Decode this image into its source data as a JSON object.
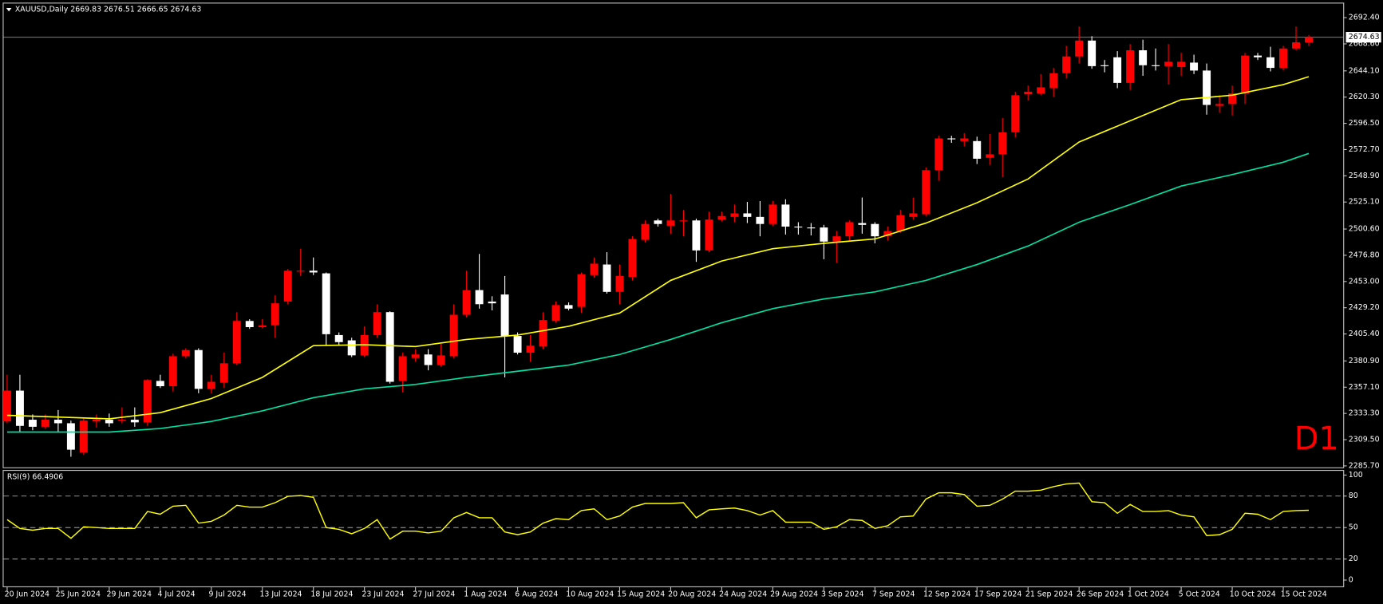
{
  "chart_data": {
    "type": "candlestick",
    "title": "XAUUSD,Daily 2669.83 2676.51 2666.65 2674.63",
    "watermark": "D1",
    "bull_color": "#ff0000",
    "bear_color": "#ffffff",
    "categories": [
      "20 Jun 2024",
      null,
      null,
      null,
      "25 Jun 2024",
      null,
      null,
      null,
      "29 Jun 2024",
      null,
      null,
      null,
      "4 Jul 2024",
      null,
      null,
      null,
      "9 Jul 2024",
      null,
      null,
      null,
      "13 Jul 2024",
      null,
      null,
      null,
      "18 Jul 2024",
      null,
      null,
      null,
      "23 Jul 2024",
      null,
      null,
      null,
      "27 Jul 2024",
      null,
      null,
      null,
      "1 Aug 2024",
      null,
      null,
      null,
      "6 Aug 2024",
      null,
      null,
      null,
      "10 Aug 2024",
      null,
      null,
      null,
      "15 Aug 2024",
      null,
      null,
      null,
      "20 Aug 2024",
      null,
      null,
      null,
      "24 Aug 2024",
      null,
      null,
      null,
      "29 Aug 2024",
      null,
      null,
      null,
      "3 Sep 2024",
      null,
      null,
      null,
      "7 Sep 2024",
      null,
      null,
      null,
      "12 Sep 2024",
      null,
      null,
      null,
      "17 Sep 2024",
      null,
      null,
      null,
      "21 Sep 2024",
      null,
      null,
      null,
      "26 Sep 2024",
      null,
      null,
      null,
      "1 Oct 2024",
      null,
      null,
      null,
      "5 Oct 2024",
      null,
      null,
      null,
      "10 Oct 2024",
      null,
      null,
      null,
      "15 Oct 2024",
      null,
      null
    ],
    "open": [
      2326.0,
      2354.0,
      2327.6,
      2321.2,
      2327.6,
      2324.4,
      2298.0,
      2326.0,
      2327.6,
      2326.8,
      2327.6,
      2325.2,
      2362.8,
      2358.0,
      2385.2,
      2390.8,
      2355.6,
      2361.2,
      2378.8,
      2417.2,
      2411.6,
      2413.2,
      2434.8,
      2462.0,
      2462.8,
      2460.4,
      2404.4,
      2399.6,
      2386.0,
      2404.4,
      2425.2,
      2362.8,
      2383.6,
      2386.8,
      2377.2,
      2385.2,
      2422.8,
      2445.2,
      2434.8,
      2441.2,
      2403.6,
      2388.4,
      2394.0,
      2417.2,
      2431.6,
      2430.0,
      2458.8,
      2468.4,
      2443.6,
      2457.2,
      2490.8,
      2508.4,
      2503.6,
      2507.6,
      2508.4,
      2481.2,
      2509.2,
      2511.6,
      2514.8,
      2511.6,
      2505.2,
      2522.8,
      2502.8,
      2502.0,
      2502.0,
      2489.2,
      2494.0,
      2506.0,
      2505.2,
      2494.0,
      2498.8,
      2511.6,
      2514.0,
      2554.0,
      2582.8,
      2580.4,
      2580.4,
      2565.2,
      2568.4,
      2588.4,
      2622.8,
      2623.6,
      2628.4,
      2642.0,
      2657.2,
      2671.6,
      2649.2,
      2656.4,
      2633.2,
      2662.8,
      2649.2,
      2648.4,
      2647.6,
      2651.6,
      2644.4,
      2612.4,
      2614.0,
      2623.6,
      2658.0,
      2656.4,
      2646.8,
      2664.4,
      2669.83
    ],
    "high": [
      2368.4,
      2368.4,
      2332.4,
      2332.4,
      2336.4,
      2326.8,
      2329.2,
      2332.4,
      2333.2,
      2338.8,
      2338.8,
      2364.4,
      2368.4,
      2387.6,
      2392.4,
      2392.4,
      2368.4,
      2388.4,
      2425.2,
      2418.8,
      2418.8,
      2440.4,
      2464.4,
      2482.8,
      2474.8,
      2461.2,
      2406.8,
      2402.0,
      2412.4,
      2432.4,
      2426.0,
      2388.4,
      2391.6,
      2391.6,
      2396.4,
      2432.4,
      2462.8,
      2478.0,
      2439.6,
      2458.0,
      2406.8,
      2404.4,
      2425.2,
      2434.8,
      2434.0,
      2461.2,
      2474.8,
      2479.6,
      2468.4,
      2494.0,
      2508.4,
      2510.0,
      2532.4,
      2518.0,
      2510.0,
      2516.4,
      2516.4,
      2522.8,
      2525.2,
      2526.0,
      2526.0,
      2527.6,
      2506.8,
      2506.0,
      2504.4,
      2498.8,
      2508.4,
      2529.2,
      2506.8,
      2502.8,
      2518.0,
      2529.2,
      2556.4,
      2585.2,
      2585.2,
      2587.6,
      2584.4,
      2586.8,
      2601.2,
      2625.2,
      2630.8,
      2641.2,
      2646.8,
      2666.8,
      2684.4,
      2675.6,
      2654.0,
      2662.0,
      2668.4,
      2672.4,
      2664.4,
      2668.4,
      2660.4,
      2658.8,
      2650.8,
      2622.0,
      2630.8,
      2660.4,
      2660.4,
      2666.0,
      2666.8,
      2684.4,
      2676.51
    ],
    "low": [
      2324.4,
      2316.4,
      2318.0,
      2319.6,
      2316.4,
      2294.0,
      2295.6,
      2320.4,
      2321.2,
      2324.4,
      2321.2,
      2322.0,
      2356.4,
      2353.2,
      2383.6,
      2351.6,
      2351.6,
      2356.4,
      2377.2,
      2410.0,
      2410.8,
      2402.0,
      2432.4,
      2458.0,
      2458.8,
      2394.8,
      2394.8,
      2384.4,
      2384.4,
      2402.0,
      2360.4,
      2352.4,
      2380.4,
      2372.4,
      2375.6,
      2383.6,
      2420.4,
      2428.4,
      2426.8,
      2366.0,
      2386.8,
      2380.4,
      2391.6,
      2415.6,
      2426.8,
      2424.4,
      2456.4,
      2442.0,
      2432.4,
      2454.0,
      2488.4,
      2502.8,
      2496.4,
      2494.0,
      2470.8,
      2479.6,
      2507.6,
      2506.8,
      2506.0,
      2494.0,
      2503.6,
      2495.6,
      2495.6,
      2494.8,
      2473.2,
      2470.0,
      2489.2,
      2496.4,
      2487.6,
      2490.0,
      2497.2,
      2509.2,
      2512.4,
      2544.4,
      2578.8,
      2575.6,
      2559.6,
      2558.8,
      2547.6,
      2583.6,
      2617.2,
      2622.0,
      2620.4,
      2637.2,
      2650.8,
      2646.0,
      2642.8,
      2628.4,
      2626.8,
      2639.6,
      2644.4,
      2631.6,
      2639.6,
      2641.2,
      2604.4,
      2606.0,
      2603.6,
      2614.0,
      2654.0,
      2643.6,
      2644.4,
      2662.8,
      2666.65
    ],
    "close": [
      2354.0,
      2322.0,
      2321.2,
      2327.6,
      2324.4,
      2300.4,
      2326.8,
      2327.6,
      2324.4,
      2327.6,
      2325.2,
      2363.6,
      2358.0,
      2385.2,
      2390.8,
      2355.6,
      2362.0,
      2378.8,
      2417.2,
      2411.6,
      2413.2,
      2433.2,
      2462.8,
      2462.8,
      2461.2,
      2405.2,
      2398.0,
      2386.0,
      2404.4,
      2425.2,
      2362.0,
      2385.2,
      2386.8,
      2377.2,
      2386.0,
      2422.8,
      2445.2,
      2432.4,
      2433.2,
      2403.6,
      2388.4,
      2394.8,
      2418.0,
      2431.6,
      2428.4,
      2459.6,
      2469.2,
      2443.6,
      2458.0,
      2491.6,
      2505.2,
      2505.2,
      2508.4,
      2508.4,
      2481.2,
      2509.2,
      2512.4,
      2514.8,
      2511.6,
      2505.2,
      2522.8,
      2502.8,
      2502.0,
      2501.2,
      2489.2,
      2494.0,
      2506.8,
      2504.4,
      2494.0,
      2498.8,
      2513.2,
      2514.8,
      2554.0,
      2582.8,
      2582.0,
      2582.8,
      2564.4,
      2568.4,
      2588.4,
      2622.0,
      2625.2,
      2629.2,
      2642.0,
      2657.2,
      2671.6,
      2648.4,
      2648.4,
      2633.2,
      2662.8,
      2649.2,
      2648.4,
      2652.4,
      2652.4,
      2644.4,
      2613.2,
      2614.0,
      2623.6,
      2658.0,
      2656.4,
      2646.8,
      2664.4,
      2670.0,
      2674.63
    ],
    "overlays": [
      {
        "color": "#ffff00",
        "x": [
          0,
          4,
          8,
          12,
          16,
          20,
          24,
          28,
          32,
          36,
          40,
          44,
          48,
          52,
          56,
          60,
          64,
          68,
          72,
          76,
          80,
          84,
          88,
          92,
          96,
          100,
          102
        ],
        "values": [
          2331.6,
          2330.0,
          2328.4,
          2334.0,
          2346.8,
          2366.0,
          2394.8,
          2395.6,
          2394.0,
          2400.4,
          2404.4,
          2412.4,
          2424.4,
          2454.0,
          2471.6,
          2482.8,
          2487.6,
          2491.6,
          2506.0,
          2524.4,
          2546.0,
          2579.6,
          2598.8,
          2618.0,
          2622.0,
          2631.6,
          2638.8
        ]
      },
      {
        "color": "#00e0a0",
        "x": [
          0,
          4,
          8,
          12,
          16,
          20,
          24,
          28,
          32,
          36,
          40,
          44,
          48,
          52,
          56,
          60,
          64,
          68,
          72,
          76,
          80,
          84,
          88,
          92,
          96,
          100,
          102
        ],
        "values": [
          2316.4,
          2316.4,
          2316.4,
          2319.6,
          2326.0,
          2335.6,
          2347.6,
          2355.6,
          2359.6,
          2366.0,
          2371.6,
          2377.2,
          2386.8,
          2400.4,
          2415.6,
          2428.4,
          2437.2,
          2443.6,
          2454.0,
          2468.4,
          2485.2,
          2506.8,
          2522.8,
          2539.6,
          2550.0,
          2561.2,
          2569.2
        ]
      }
    ],
    "current_price": 2674.63,
    "ylim": [
      2283.6,
      2705.2
    ],
    "yticks": [
      {
        "value": 2692.4,
        "label": "2692.40"
      },
      {
        "value": 2668.6,
        "label": "2668.60"
      },
      {
        "value": 2644.1,
        "label": "2644.10"
      },
      {
        "value": 2620.3,
        "label": "2620.30"
      },
      {
        "value": 2596.5,
        "label": "2596.50"
      },
      {
        "value": 2572.7,
        "label": "2572.70"
      },
      {
        "value": 2548.9,
        "label": "2548.90"
      },
      {
        "value": 2525.1,
        "label": "2525.10"
      },
      {
        "value": 2500.6,
        "label": "2500.60"
      },
      {
        "value": 2476.8,
        "label": "2476.80"
      },
      {
        "value": 2453.0,
        "label": "2453.00"
      },
      {
        "value": 2429.2,
        "label": "2429.20"
      },
      {
        "value": 2405.4,
        "label": "2405.40"
      },
      {
        "value": 2380.9,
        "label": "2380.90"
      },
      {
        "value": 2357.1,
        "label": "2357.10"
      },
      {
        "value": 2333.3,
        "label": "2333.30"
      },
      {
        "value": 2309.5,
        "label": "2309.50"
      },
      {
        "value": 2285.7,
        "label": "2285.70"
      }
    ],
    "indicator": {
      "type": "line",
      "title": "RSI(9) 66.4906",
      "color": "#ffff00",
      "values": [
        57.6,
        49.2,
        47.5,
        49.2,
        49.2,
        39.8,
        50.8,
        50.0,
        49.2,
        49.2,
        49.2,
        65.3,
        62.7,
        70.3,
        71.2,
        54.2,
        55.9,
        61.9,
        71.2,
        69.5,
        69.5,
        73.7,
        79.7,
        80.5,
        78.8,
        50.0,
        48.3,
        44.1,
        49.2,
        57.6,
        39.0,
        46.6,
        46.6,
        44.9,
        46.6,
        59.3,
        64.4,
        59.3,
        59.3,
        45.8,
        43.2,
        45.8,
        54.2,
        58.5,
        57.6,
        66.1,
        67.8,
        57.6,
        61.0,
        69.5,
        72.9,
        72.9,
        72.9,
        73.7,
        59.3,
        66.9,
        67.8,
        68.6,
        66.1,
        61.9,
        66.1,
        55.1,
        55.1,
        55.1,
        48.3,
        50.8,
        57.6,
        56.8,
        49.2,
        51.7,
        60.2,
        61.0,
        77.1,
        83.1,
        83.1,
        81.4,
        70.3,
        71.2,
        77.1,
        84.7,
        84.7,
        85.6,
        89.0,
        91.5,
        92.4,
        74.6,
        73.7,
        63.6,
        72.0,
        65.3,
        65.3,
        66.1,
        61.9,
        60.2,
        42.4,
        43.2,
        48.3,
        63.6,
        62.7,
        57.6,
        65.3,
        66.1,
        66.4906
      ],
      "ylim": [
        -6,
        104
      ],
      "yticks": [
        100,
        80,
        50,
        20,
        0
      ],
      "levels": [
        80,
        50,
        20
      ]
    }
  }
}
